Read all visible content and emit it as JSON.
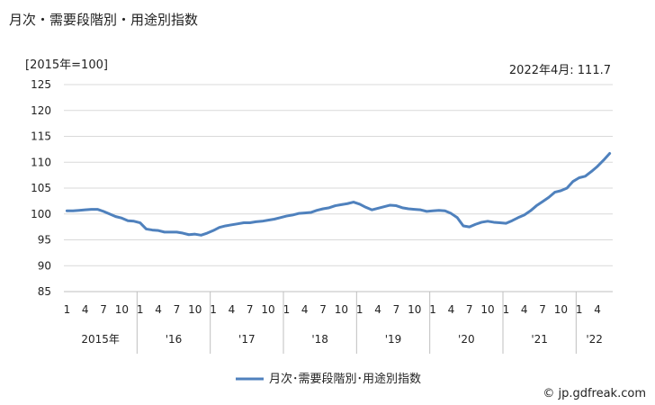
{
  "chart_data": {
    "type": "line",
    "title": "月次・需要段階別・用途別指数",
    "unit_label": "[2015年=100]",
    "annotation": "2022年4月: 111.7",
    "ylim": [
      85,
      125
    ],
    "yticks": [
      85,
      90,
      95,
      100,
      105,
      110,
      115,
      120,
      125
    ],
    "grid": true,
    "legend_position": "bottom-center",
    "month_ticks": [
      "1",
      "4",
      "7",
      "10",
      "1",
      "4",
      "7",
      "10",
      "1",
      "4",
      "7",
      "10",
      "1",
      "4",
      "7",
      "10",
      "1",
      "4",
      "7",
      "10",
      "1",
      "4",
      "7",
      "10",
      "1",
      "4",
      "7",
      "10",
      "1",
      "4"
    ],
    "year_labels": [
      "2015年",
      "'16",
      "'17",
      "'18",
      "'19",
      "'20",
      "'21",
      "'22"
    ],
    "x_start": "2015-01",
    "x_end": "2022-04",
    "series": [
      {
        "name": "月次･需要段階別･用途別指数",
        "color": "#4f81bd",
        "values": [
          100.6,
          100.6,
          100.7,
          100.8,
          100.9,
          100.9,
          100.5,
          100.0,
          99.5,
          99.2,
          98.7,
          98.6,
          98.3,
          97.1,
          96.9,
          96.8,
          96.5,
          96.5,
          96.5,
          96.3,
          96.0,
          96.1,
          95.9,
          96.3,
          96.8,
          97.4,
          97.7,
          97.9,
          98.1,
          98.3,
          98.3,
          98.5,
          98.6,
          98.8,
          99.0,
          99.3,
          99.6,
          99.8,
          100.1,
          100.2,
          100.3,
          100.7,
          101.0,
          101.2,
          101.6,
          101.8,
          102.0,
          102.3,
          101.9,
          101.3,
          100.8,
          101.1,
          101.4,
          101.7,
          101.6,
          101.2,
          101.0,
          100.9,
          100.8,
          100.5,
          100.6,
          100.7,
          100.6,
          100.1,
          99.3,
          97.7,
          97.5,
          98.0,
          98.4,
          98.6,
          98.4,
          98.3,
          98.2,
          98.7,
          99.3,
          99.8,
          100.6,
          101.6,
          102.4,
          103.2,
          104.2,
          104.5,
          105.0,
          106.3,
          107.0,
          107.3,
          108.2,
          109.2,
          110.4,
          111.7
        ]
      }
    ]
  },
  "credit": "© jp.gdfreak.com"
}
